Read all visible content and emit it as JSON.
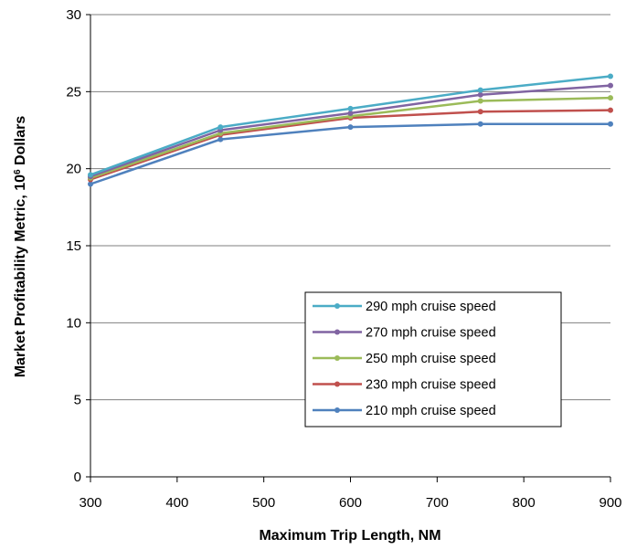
{
  "chart_data": {
    "type": "line",
    "xlabel": "Maximum Trip Length, NM",
    "ylabel": {
      "pre": "Market Profitability Metric, 10",
      "sup": "6",
      "post": " Dollars"
    },
    "xlim": [
      300,
      900
    ],
    "ylim": [
      0,
      30
    ],
    "xticks": [
      300,
      400,
      500,
      600,
      700,
      800,
      900
    ],
    "yticks": [
      0,
      5,
      10,
      15,
      20,
      25,
      30
    ],
    "grid": "horizontal",
    "legend_position": "lower-right",
    "x": [
      300,
      450,
      600,
      750,
      900
    ],
    "series": [
      {
        "name": "290 mph cruise speed",
        "color": "#4BACC6",
        "values": [
          19.6,
          22.7,
          23.9,
          25.1,
          26.0
        ]
      },
      {
        "name": "270 mph cruise speed",
        "color": "#8064A2",
        "values": [
          19.5,
          22.5,
          23.6,
          24.8,
          25.4
        ]
      },
      {
        "name": "250 mph cruise speed",
        "color": "#9BBB59",
        "values": [
          19.4,
          22.3,
          23.4,
          24.4,
          24.6
        ]
      },
      {
        "name": "230 mph cruise speed",
        "color": "#C0504D",
        "values": [
          19.3,
          22.2,
          23.3,
          23.7,
          23.8
        ]
      },
      {
        "name": "210 mph cruise speed",
        "color": "#4F81BD",
        "values": [
          19.0,
          21.9,
          22.7,
          22.9,
          22.9
        ]
      }
    ]
  }
}
